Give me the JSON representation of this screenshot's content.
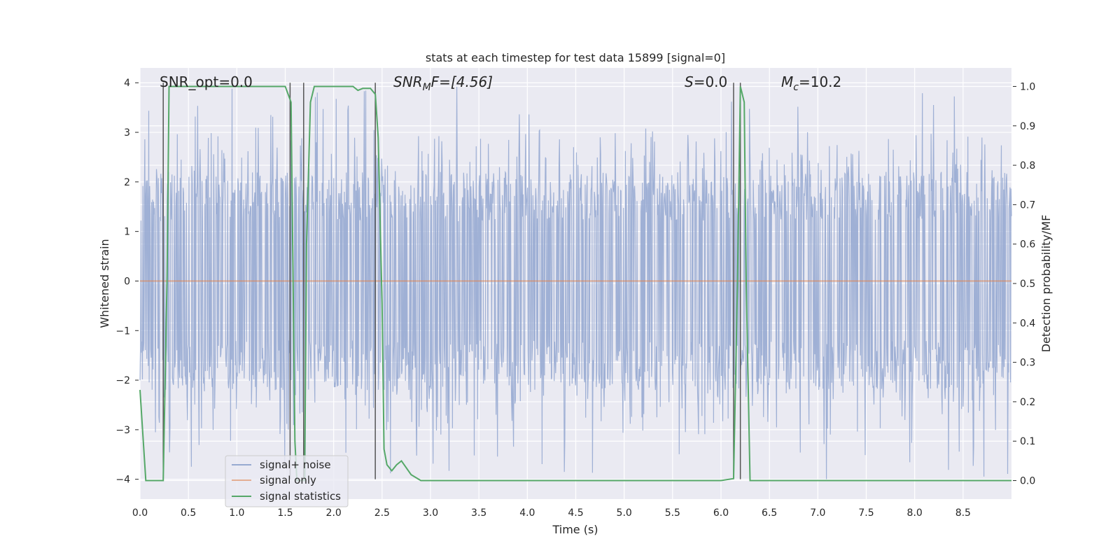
{
  "chart_data": {
    "type": "line",
    "title": "stats at each timestep for test data 15899 [signal=0]",
    "xlabel": "Time (s)",
    "ylabel": "Whitened strain",
    "y2label": "Detection probability/MF",
    "xlim": [
      0.0,
      9.0
    ],
    "ylim": [
      -4.4,
      4.3
    ],
    "y2lim": [
      -0.047,
      1.047
    ],
    "xticks": [
      "0.0",
      "0.5",
      "1.0",
      "1.5",
      "2.0",
      "2.5",
      "3.0",
      "3.5",
      "4.0",
      "4.5",
      "5.0",
      "5.5",
      "6.0",
      "6.5",
      "7.0",
      "7.5",
      "8.0",
      "8.5"
    ],
    "yticks": [
      "−4",
      "−3",
      "−2",
      "−1",
      "0",
      "1",
      "2",
      "3",
      "4"
    ],
    "y2ticks": [
      "0.0",
      "0.1",
      "0.2",
      "0.3",
      "0.4",
      "0.5",
      "0.6",
      "0.7",
      "0.8",
      "0.9",
      "1.0"
    ],
    "grid": true,
    "legend_position": "lower-left",
    "annotations": {
      "snr_opt": "SNR_opt=0.0",
      "snr_mf_base": "SNR",
      "snr_mf_sub": "M",
      "snr_mf_rest": "F=[4.56]",
      "s_base": "S",
      "s_rest": "=0.0",
      "mc_base": "M",
      "mc_sub": "c",
      "mc_rest": "=10.2"
    },
    "series": [
      {
        "name": "signal+ noise",
        "color": "#97aad1",
        "description_values": "dense whitened noise",
        "envelope": {
          "upper": 2.2,
          "lower": -2.2,
          "peak_max": 4.0,
          "peak_min": -4.0,
          "n_samples": 1800,
          "seed": 15899
        }
      },
      {
        "name": "signal only",
        "color": "#dd8452",
        "x": [
          0.0,
          9.0
        ],
        "y": [
          0.0,
          0.0
        ]
      },
      {
        "name": "signal statistics",
        "color": "#55a868",
        "axis": "right",
        "x": [
          0.0,
          0.06,
          0.24,
          0.28,
          0.3,
          0.32,
          0.4,
          1.0,
          1.5,
          1.56,
          1.6,
          1.62,
          1.64,
          1.66,
          1.7,
          1.72,
          1.76,
          1.8,
          2.0,
          2.2,
          2.25,
          2.3,
          2.35,
          2.38,
          2.43,
          2.46,
          2.5,
          2.52,
          2.55,
          2.6,
          2.65,
          2.7,
          2.8,
          2.9,
          3.0,
          4.0,
          5.0,
          6.0,
          6.13,
          6.17,
          6.2,
          6.24,
          6.26,
          6.3,
          6.4,
          7.0,
          8.0,
          9.0
        ],
        "y": [
          0.23,
          0.0,
          0.0,
          0.52,
          1.0,
          1.0,
          1.0,
          1.0,
          1.0,
          0.96,
          0.1,
          0.0,
          0.0,
          0.0,
          0.0,
          0.6,
          0.96,
          1.0,
          1.0,
          1.0,
          0.99,
          0.995,
          0.995,
          0.995,
          0.98,
          0.87,
          0.45,
          0.08,
          0.04,
          0.025,
          0.04,
          0.05,
          0.015,
          0.0,
          0.0,
          0.0,
          0.0,
          0.0,
          0.005,
          0.5,
          1.0,
          0.96,
          0.5,
          0.0,
          0.0,
          0.0,
          0.0,
          0.0
        ]
      }
    ],
    "vertical_lines": {
      "color": "#555555",
      "x": [
        0.24,
        1.55,
        1.69,
        2.43,
        6.13,
        6.2
      ]
    }
  }
}
